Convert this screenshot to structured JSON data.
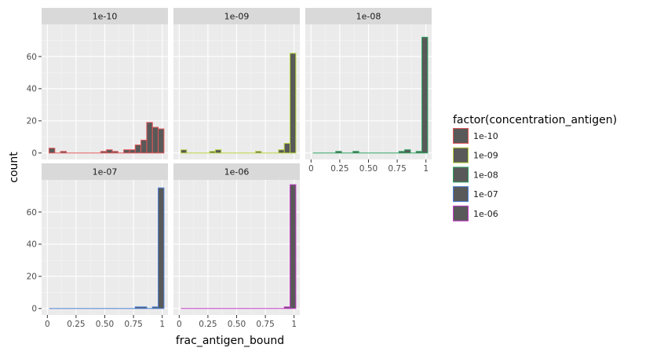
{
  "chart_data": {
    "type": "bar",
    "chart_kind": "faceted histogram",
    "xlabel": "frac_antigen_bound",
    "ylabel": "count",
    "x_ticks": [
      "0",
      "0.25",
      "0.50",
      "0.75",
      "1"
    ],
    "x_tick_values": [
      0,
      0.25,
      0.5,
      0.75,
      1
    ],
    "y_ticks": [
      "0",
      "20",
      "40",
      "60"
    ],
    "y_tick_values": [
      0,
      20,
      40,
      60
    ],
    "ylim": [
      -4,
      80
    ],
    "xlim": [
      -0.05,
      1.05
    ],
    "bin_centers": [
      0.04,
      0.09,
      0.14,
      0.19,
      0.24,
      0.29,
      0.34,
      0.39,
      0.44,
      0.49,
      0.54,
      0.59,
      0.64,
      0.69,
      0.74,
      0.79,
      0.84,
      0.89,
      0.94,
      0.99
    ],
    "bin_width": 0.05,
    "fill_color": "#595959",
    "panel_background": "#ebebeb",
    "legend_title": "factor(concentration_antigen)",
    "legend_position": "right",
    "grid": true,
    "series": [
      {
        "name": "1e-10",
        "color": "#e15759",
        "values": [
          3,
          0,
          1,
          0,
          0,
          0,
          0,
          0,
          0,
          1,
          2,
          1,
          0,
          2,
          2,
          5,
          8,
          19,
          16,
          15
        ]
      },
      {
        "name": "1e-09",
        "color": "#b5d33d",
        "values": [
          2,
          0,
          0,
          0,
          0,
          1,
          2,
          0,
          0,
          0,
          0,
          0,
          0,
          1,
          0,
          0,
          0,
          2,
          6,
          62
        ]
      },
      {
        "name": "1e-08",
        "color": "#2ca25f",
        "values": [
          0,
          0,
          0,
          0,
          1,
          0,
          0,
          1,
          0,
          0,
          0,
          0,
          0,
          0,
          0,
          1,
          2,
          0,
          1,
          72
        ]
      },
      {
        "name": "1e-07",
        "color": "#4a7fd4",
        "values": [
          0,
          0,
          0,
          0,
          0,
          0,
          0,
          0,
          0,
          0,
          0,
          0,
          0,
          0,
          0,
          1,
          1,
          0,
          1,
          75
        ]
      },
      {
        "name": "1e-06",
        "color": "#c53ac9",
        "values": [
          0,
          0,
          0,
          0,
          0,
          0,
          0,
          0,
          0,
          0,
          0,
          0,
          0,
          0,
          0,
          0,
          0,
          0,
          1,
          77
        ]
      }
    ]
  }
}
